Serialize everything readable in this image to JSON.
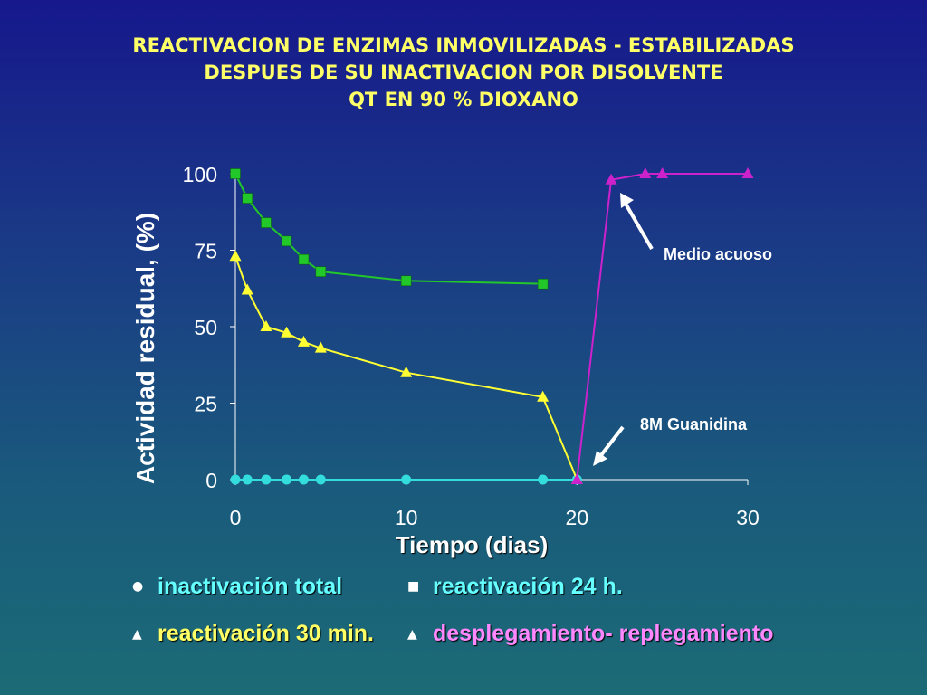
{
  "title_lines": [
    "REACTIVACION DE ENZIMAS INMOVILIZADAS - ESTABILIZADAS",
    "DESPUES DE SU INACTIVACION POR DISOLVENTE",
    "QT EN 90 % DIOXANO"
  ],
  "colors": {
    "title": "#ffff66",
    "text": "#ffffff",
    "series_reactivacion_24h": "#22c72a",
    "series_reactivacion_30min": "#ffff33",
    "series_inactivacion_total": "#33dddd",
    "series_desplegamiento": "#cc22cc",
    "legend_desplegamiento_text": "#ff88ff",
    "legend_text": "#66ffff"
  },
  "legend": {
    "inactivacion_total": "inactivación total",
    "reactivacion_24h": "reactivación 24 h.",
    "reactivacion_30min": "reactivación 30 min.",
    "desplegamiento": "desplegamiento- replegamiento"
  },
  "chart_data": {
    "type": "line",
    "xlabel": "Tiempo (dias)",
    "ylabel": "Actividad residual, (%)",
    "xlim": [
      0,
      30
    ],
    "ylim": [
      0,
      100
    ],
    "xticks": [
      0,
      10,
      20,
      30
    ],
    "yticks": [
      0,
      25,
      50,
      75,
      100
    ],
    "grid": false,
    "series": [
      {
        "name": "reactivación 24 h.",
        "marker": "square",
        "color": "#22c72a",
        "x": [
          0,
          0.7,
          1.8,
          3,
          4,
          5,
          10,
          18
        ],
        "y": [
          100,
          92,
          84,
          78,
          72,
          68,
          65,
          64
        ]
      },
      {
        "name": "reactivación 30 min.",
        "marker": "triangle",
        "color": "#ffff33",
        "x": [
          0,
          0.7,
          1.8,
          3,
          4,
          5,
          10,
          18,
          20
        ],
        "y": [
          73,
          62,
          50,
          48,
          45,
          43,
          35,
          27,
          0
        ]
      },
      {
        "name": "inactivación total",
        "marker": "circle",
        "color": "#33dddd",
        "x": [
          0,
          0.7,
          1.8,
          3,
          4,
          5,
          10,
          18,
          20
        ],
        "y": [
          0,
          0,
          0,
          0,
          0,
          0,
          0,
          0,
          0
        ]
      },
      {
        "name": "desplegamiento- replegamiento",
        "marker": "triangle",
        "color": "#cc22cc",
        "x": [
          20,
          22,
          24,
          25,
          30
        ],
        "y": [
          0,
          98,
          100,
          100,
          100
        ]
      }
    ],
    "annotations": [
      {
        "text": "Medio acuoso"
      },
      {
        "text": "8M Guanidina"
      }
    ]
  }
}
